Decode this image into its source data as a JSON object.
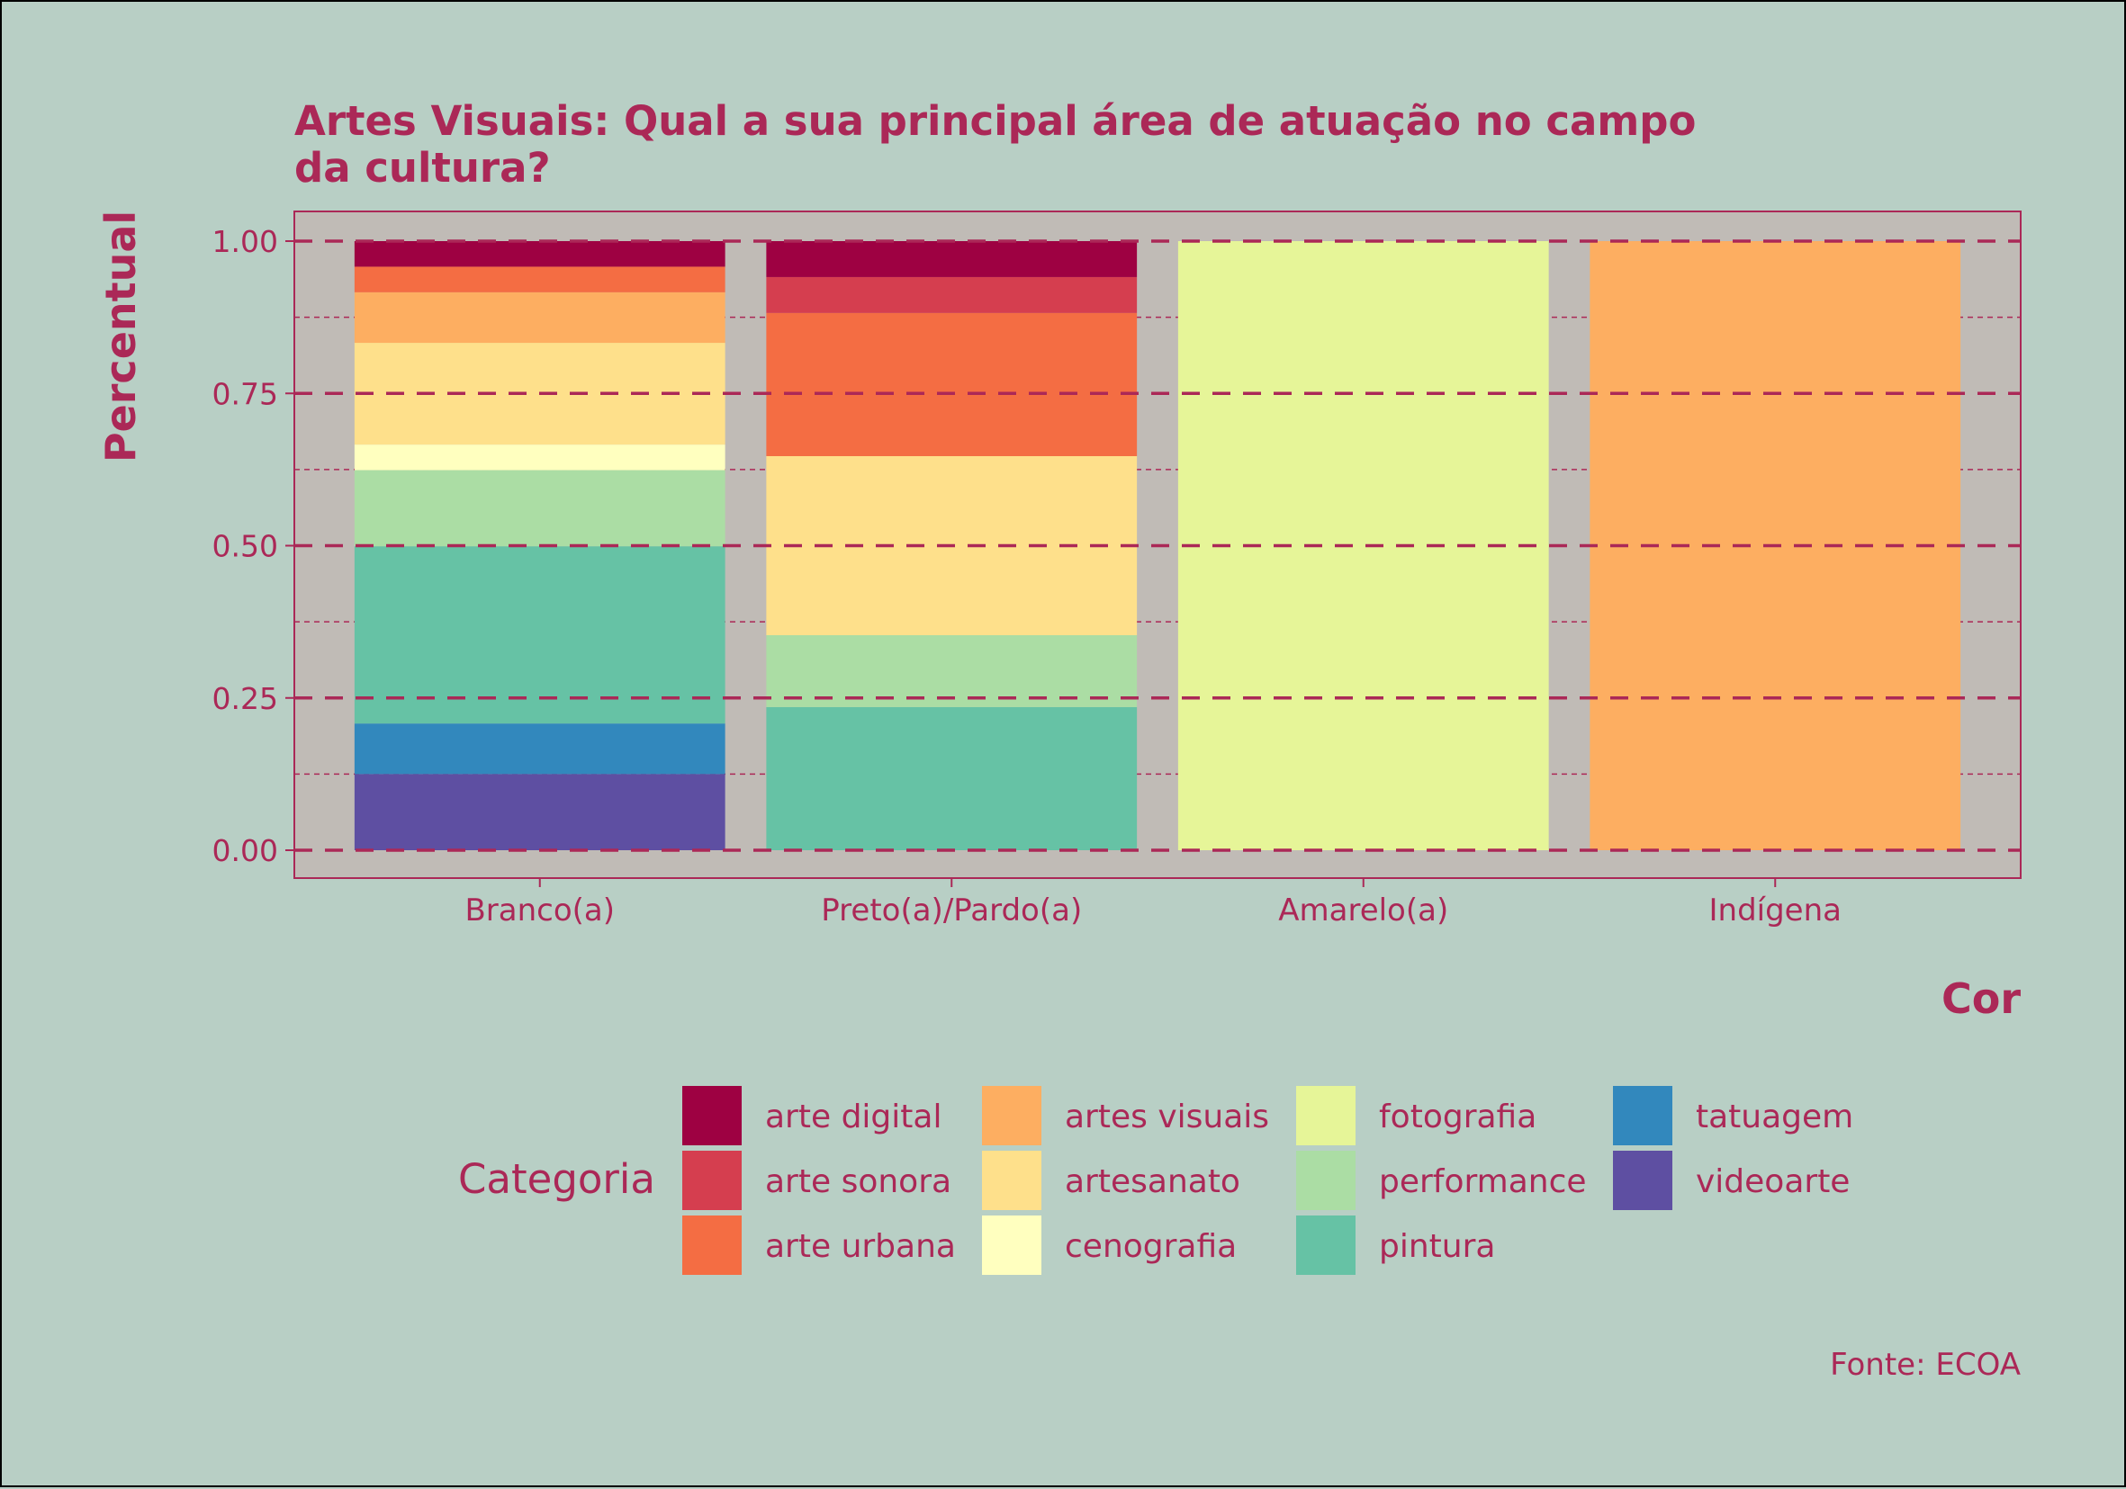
{
  "chart_data": {
    "type": "bar",
    "stacked": true,
    "title": "Artes Visuais: Qual a sua principal área de atuação no campo da cultura?",
    "title_lines": [
      "Artes Visuais: Qual a sua principal área de atuação no campo",
      "da cultura?"
    ],
    "xlabel": "Cor",
    "ylabel": "Percentual",
    "caption": "Fonte: ECOA",
    "ylim": [
      0,
      1
    ],
    "y_ticks": [
      "0.00",
      "0.25",
      "0.50",
      "0.75",
      "1.00"
    ],
    "grid": true,
    "legend": {
      "title": "Categoria",
      "position": "bottom"
    },
    "categories": [
      "Branco(a)",
      "Preto(a)/Pardo(a)",
      "Amarelo(a)",
      "Indígena"
    ],
    "series": [
      {
        "name": "arte digital",
        "color": "#9e0142",
        "values": [
          0.042,
          0.059,
          0,
          0
        ]
      },
      {
        "name": "arte sonora",
        "color": "#d53e4f",
        "values": [
          0,
          0.059,
          0,
          0
        ]
      },
      {
        "name": "arte urbana",
        "color": "#f46d43",
        "values": [
          0.042,
          0.235,
          0,
          0
        ]
      },
      {
        "name": "artes visuais",
        "color": "#fdae61",
        "values": [
          0.083,
          0,
          0,
          1
        ]
      },
      {
        "name": "artesanato",
        "color": "#fee08b",
        "values": [
          0.167,
          0.294,
          0,
          0
        ]
      },
      {
        "name": "cenografia",
        "color": "#ffffbf",
        "values": [
          0.042,
          0,
          0,
          0
        ]
      },
      {
        "name": "fotografia",
        "color": "#e6f598",
        "values": [
          0,
          0,
          1,
          0
        ]
      },
      {
        "name": "performance",
        "color": "#abdda4",
        "values": [
          0.125,
          0.118,
          0,
          0
        ]
      },
      {
        "name": "pintura",
        "color": "#66c2a5",
        "values": [
          0.291,
          0.235,
          0,
          0
        ]
      },
      {
        "name": "tatuagem",
        "color": "#3288bd",
        "values": [
          0.083,
          0,
          0,
          0
        ]
      },
      {
        "name": "videoarte",
        "color": "#5e4fa2",
        "values": [
          0.125,
          0,
          0,
          0
        ]
      }
    ],
    "colors": {
      "background": "#b8cfc5",
      "panel": "#c0bbb6",
      "text": "#ab2857",
      "grid": "#ab2857"
    }
  }
}
